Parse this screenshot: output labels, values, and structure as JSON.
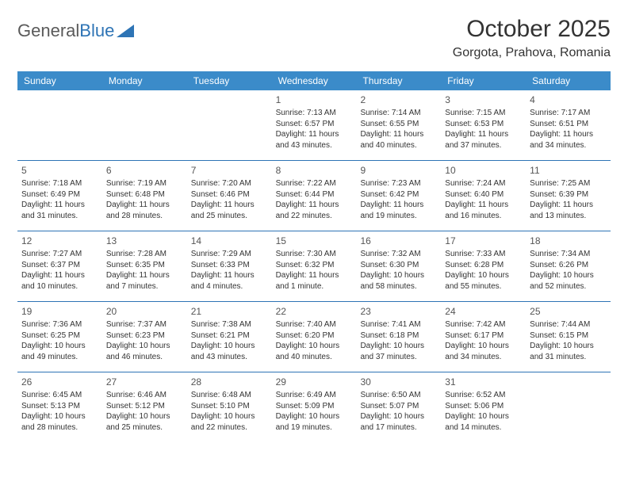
{
  "logo": {
    "text1": "General",
    "text2": "Blue"
  },
  "title": "October 2025",
  "location": "Gorgota, Prahova, Romania",
  "colors": {
    "header_bg": "#3b8bc9",
    "header_text": "#ffffff",
    "border": "#2e74b5",
    "text": "#333333",
    "daynum": "#555555",
    "logo_gray": "#5a5a5a",
    "logo_blue": "#2e74b5"
  },
  "dayNames": [
    "Sunday",
    "Monday",
    "Tuesday",
    "Wednesday",
    "Thursday",
    "Friday",
    "Saturday"
  ],
  "weeks": [
    [
      null,
      null,
      null,
      {
        "n": "1",
        "sr": "7:13 AM",
        "ss": "6:57 PM",
        "dl": "11 hours and 43 minutes."
      },
      {
        "n": "2",
        "sr": "7:14 AM",
        "ss": "6:55 PM",
        "dl": "11 hours and 40 minutes."
      },
      {
        "n": "3",
        "sr": "7:15 AM",
        "ss": "6:53 PM",
        "dl": "11 hours and 37 minutes."
      },
      {
        "n": "4",
        "sr": "7:17 AM",
        "ss": "6:51 PM",
        "dl": "11 hours and 34 minutes."
      }
    ],
    [
      {
        "n": "5",
        "sr": "7:18 AM",
        "ss": "6:49 PM",
        "dl": "11 hours and 31 minutes."
      },
      {
        "n": "6",
        "sr": "7:19 AM",
        "ss": "6:48 PM",
        "dl": "11 hours and 28 minutes."
      },
      {
        "n": "7",
        "sr": "7:20 AM",
        "ss": "6:46 PM",
        "dl": "11 hours and 25 minutes."
      },
      {
        "n": "8",
        "sr": "7:22 AM",
        "ss": "6:44 PM",
        "dl": "11 hours and 22 minutes."
      },
      {
        "n": "9",
        "sr": "7:23 AM",
        "ss": "6:42 PM",
        "dl": "11 hours and 19 minutes."
      },
      {
        "n": "10",
        "sr": "7:24 AM",
        "ss": "6:40 PM",
        "dl": "11 hours and 16 minutes."
      },
      {
        "n": "11",
        "sr": "7:25 AM",
        "ss": "6:39 PM",
        "dl": "11 hours and 13 minutes."
      }
    ],
    [
      {
        "n": "12",
        "sr": "7:27 AM",
        "ss": "6:37 PM",
        "dl": "11 hours and 10 minutes."
      },
      {
        "n": "13",
        "sr": "7:28 AM",
        "ss": "6:35 PM",
        "dl": "11 hours and 7 minutes."
      },
      {
        "n": "14",
        "sr": "7:29 AM",
        "ss": "6:33 PM",
        "dl": "11 hours and 4 minutes."
      },
      {
        "n": "15",
        "sr": "7:30 AM",
        "ss": "6:32 PM",
        "dl": "11 hours and 1 minute."
      },
      {
        "n": "16",
        "sr": "7:32 AM",
        "ss": "6:30 PM",
        "dl": "10 hours and 58 minutes."
      },
      {
        "n": "17",
        "sr": "7:33 AM",
        "ss": "6:28 PM",
        "dl": "10 hours and 55 minutes."
      },
      {
        "n": "18",
        "sr": "7:34 AM",
        "ss": "6:26 PM",
        "dl": "10 hours and 52 minutes."
      }
    ],
    [
      {
        "n": "19",
        "sr": "7:36 AM",
        "ss": "6:25 PM",
        "dl": "10 hours and 49 minutes."
      },
      {
        "n": "20",
        "sr": "7:37 AM",
        "ss": "6:23 PM",
        "dl": "10 hours and 46 minutes."
      },
      {
        "n": "21",
        "sr": "7:38 AM",
        "ss": "6:21 PM",
        "dl": "10 hours and 43 minutes."
      },
      {
        "n": "22",
        "sr": "7:40 AM",
        "ss": "6:20 PM",
        "dl": "10 hours and 40 minutes."
      },
      {
        "n": "23",
        "sr": "7:41 AM",
        "ss": "6:18 PM",
        "dl": "10 hours and 37 minutes."
      },
      {
        "n": "24",
        "sr": "7:42 AM",
        "ss": "6:17 PM",
        "dl": "10 hours and 34 minutes."
      },
      {
        "n": "25",
        "sr": "7:44 AM",
        "ss": "6:15 PM",
        "dl": "10 hours and 31 minutes."
      }
    ],
    [
      {
        "n": "26",
        "sr": "6:45 AM",
        "ss": "5:13 PM",
        "dl": "10 hours and 28 minutes."
      },
      {
        "n": "27",
        "sr": "6:46 AM",
        "ss": "5:12 PM",
        "dl": "10 hours and 25 minutes."
      },
      {
        "n": "28",
        "sr": "6:48 AM",
        "ss": "5:10 PM",
        "dl": "10 hours and 22 minutes."
      },
      {
        "n": "29",
        "sr": "6:49 AM",
        "ss": "5:09 PM",
        "dl": "10 hours and 19 minutes."
      },
      {
        "n": "30",
        "sr": "6:50 AM",
        "ss": "5:07 PM",
        "dl": "10 hours and 17 minutes."
      },
      {
        "n": "31",
        "sr": "6:52 AM",
        "ss": "5:06 PM",
        "dl": "10 hours and 14 minutes."
      },
      null
    ]
  ],
  "labels": {
    "sunrise": "Sunrise: ",
    "sunset": "Sunset: ",
    "daylight": "Daylight: "
  }
}
